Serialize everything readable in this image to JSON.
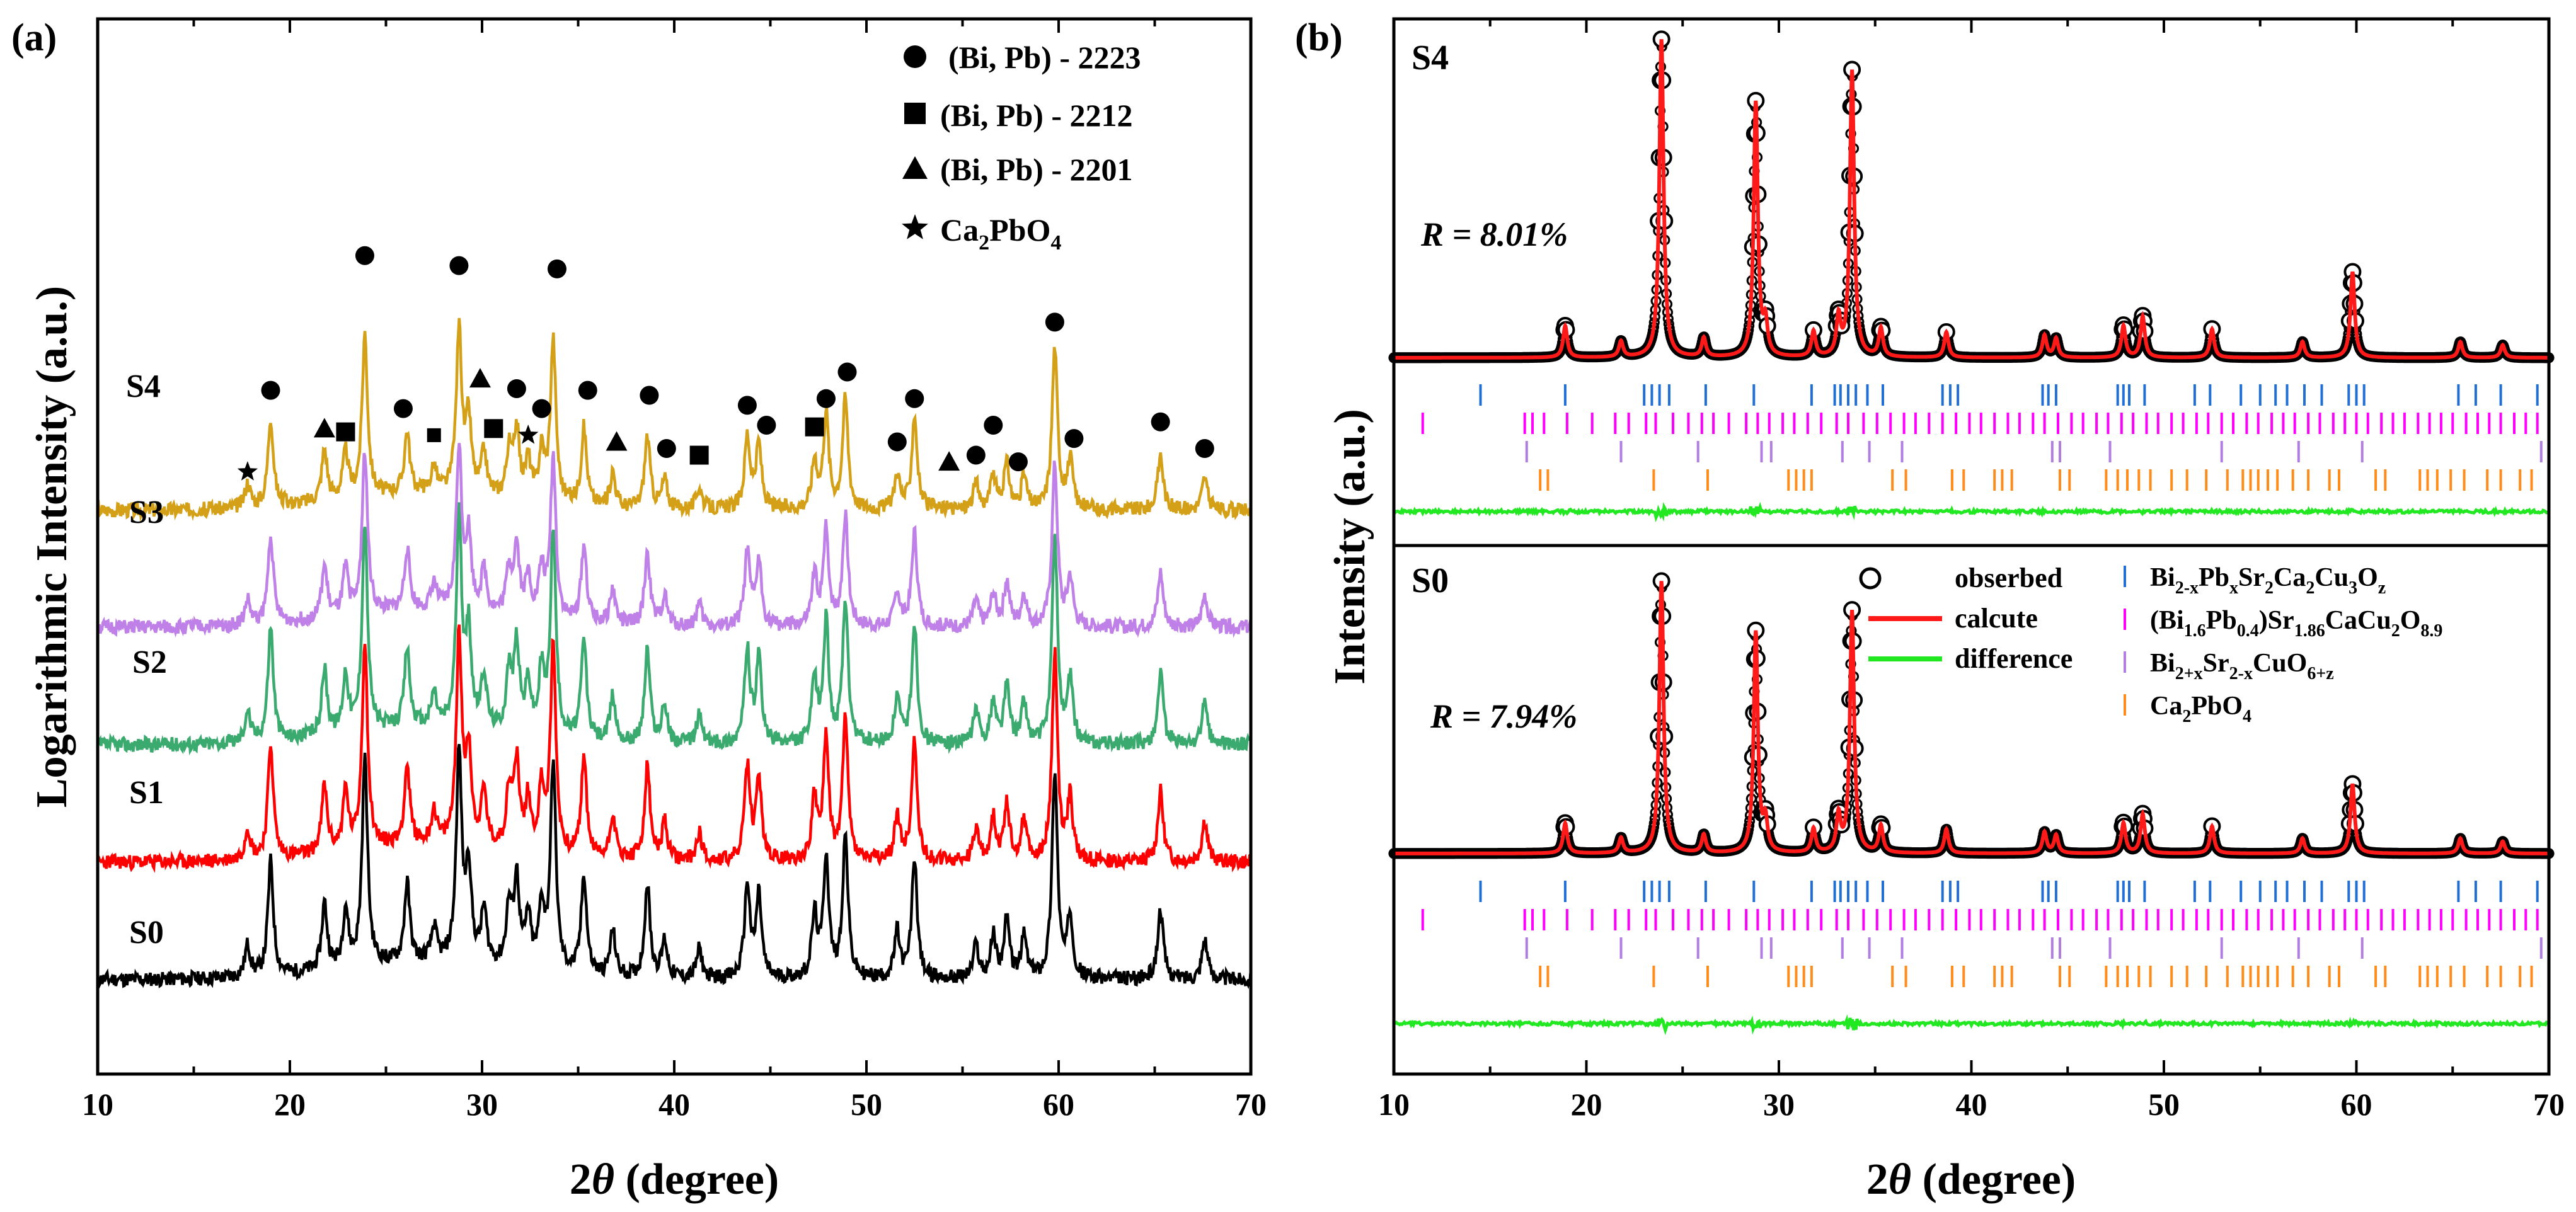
{
  "figure": {
    "panel_a_label": "(a)",
    "panel_b_label": "(b)"
  },
  "chart_data": [
    {
      "panel": "a",
      "type": "line",
      "title": "",
      "xlabel_main": "2",
      "xlabel_theta": "θ",
      "xlabel_rest": " (degree)",
      "ylabel": "Logarithmic Intensity (a.u.)",
      "xlim": [
        10,
        70
      ],
      "xticks": [
        10,
        20,
        30,
        40,
        50,
        60,
        70
      ],
      "grid": false,
      "legend_position": "top-right",
      "peaks": [
        17.8,
        19.0,
        21.8,
        22.9,
        23.9,
        26.1,
        27.5,
        28.8,
        29.3,
        30.1,
        31.4,
        31.8,
        32.4,
        33.1,
        33.7,
        35.3,
        36.8,
        38.6,
        39.5,
        41.3,
        43.8,
        44.4,
        47.3,
        47.9,
        48.9,
        51.6,
        52.5,
        55.7,
        56.6,
        57.3,
        58.2,
        59.8,
        60.6,
        65.3,
        67.6
      ],
      "peak_heights": [
        0.15,
        0.55,
        0.32,
        0.28,
        1.0,
        0.38,
        0.16,
        1.0,
        0.45,
        0.26,
        0.28,
        0.42,
        0.24,
        0.3,
        1.0,
        0.48,
        0.22,
        0.45,
        0.18,
        0.14,
        0.45,
        0.4,
        0.3,
        0.58,
        0.68,
        0.22,
        0.58,
        0.16,
        0.2,
        0.28,
        0.2,
        1.0,
        0.3,
        0.34,
        0.2
      ],
      "series": [
        {
          "name": "S0",
          "color": "#000000",
          "offset": 0,
          "scale": 1.0,
          "seed": 11
        },
        {
          "name": "S1",
          "color": "#ff0000",
          "offset": 0.9,
          "scale": 1.0,
          "seed": 23
        },
        {
          "name": "S2",
          "color": "#3aaa6e",
          "offset": 1.8,
          "scale": 1.0,
          "seed": 37
        },
        {
          "name": "S3",
          "color": "#bf80e8",
          "offset": 2.7,
          "scale": 0.78,
          "seed": 51
        },
        {
          "name": "S4",
          "color": "#d4a017",
          "offset": 3.6,
          "scale": 0.78,
          "seed": 67
        }
      ],
      "phase_legend": [
        {
          "marker": "circle",
          "label": "(Bi, Pb) - 2223"
        },
        {
          "marker": "square",
          "label": "(Bi, Pb) - 2212"
        },
        {
          "marker": "triangle",
          "label": "(Bi, Pb) - 2201"
        },
        {
          "marker": "star",
          "label_main": "Ca",
          "label_sub": "2",
          "label_tail": "PbO",
          "label_sub2": "4"
        }
      ],
      "phase_markers": [
        {
          "x": 17.8,
          "m": "star",
          "lift": 0.06
        },
        {
          "x": 19.0,
          "m": "circle",
          "lift": 0.55
        },
        {
          "x": 21.8,
          "m": "triangle",
          "lift": 0.32
        },
        {
          "x": 22.9,
          "m": "square",
          "lift": 0.3
        },
        {
          "x": 23.9,
          "m": "circle",
          "lift": 1.36
        },
        {
          "x": 25.9,
          "m": "circle",
          "lift": 0.44
        },
        {
          "x": 27.5,
          "m": "square-small",
          "lift": 0.28
        },
        {
          "x": 28.8,
          "m": "circle",
          "lift": 1.3
        },
        {
          "x": 29.9,
          "m": "triangle",
          "lift": 0.62
        },
        {
          "x": 30.6,
          "m": "square",
          "lift": 0.32
        },
        {
          "x": 31.8,
          "m": "circle",
          "lift": 0.56
        },
        {
          "x": 32.4,
          "m": "star",
          "lift": 0.28
        },
        {
          "x": 33.1,
          "m": "circle",
          "lift": 0.44
        },
        {
          "x": 33.9,
          "m": "circle",
          "lift": 1.28
        },
        {
          "x": 35.5,
          "m": "circle",
          "lift": 0.55
        },
        {
          "x": 37.0,
          "m": "triangle",
          "lift": 0.24
        },
        {
          "x": 38.7,
          "m": "circle",
          "lift": 0.52
        },
        {
          "x": 39.6,
          "m": "circle",
          "lift": 0.2
        },
        {
          "x": 41.3,
          "m": "square",
          "lift": 0.16
        },
        {
          "x": 43.8,
          "m": "circle",
          "lift": 0.46
        },
        {
          "x": 44.8,
          "m": "circle",
          "lift": 0.34
        },
        {
          "x": 47.3,
          "m": "square",
          "lift": 0.33
        },
        {
          "x": 47.9,
          "m": "circle",
          "lift": 0.5
        },
        {
          "x": 49.0,
          "m": "circle",
          "lift": 0.66
        },
        {
          "x": 51.6,
          "m": "circle",
          "lift": 0.24
        },
        {
          "x": 52.5,
          "m": "circle",
          "lift": 0.5
        },
        {
          "x": 54.3,
          "m": "triangle",
          "lift": 0.12
        },
        {
          "x": 55.7,
          "m": "circle",
          "lift": 0.16
        },
        {
          "x": 56.6,
          "m": "circle",
          "lift": 0.34
        },
        {
          "x": 57.9,
          "m": "circle",
          "lift": 0.12
        },
        {
          "x": 59.8,
          "m": "circle",
          "lift": 0.96
        },
        {
          "x": 60.8,
          "m": "circle",
          "lift": 0.26
        },
        {
          "x": 65.3,
          "m": "circle",
          "lift": 0.36
        },
        {
          "x": 67.6,
          "m": "circle",
          "lift": 0.2
        }
      ]
    },
    {
      "panel": "b",
      "type": "line",
      "title": "",
      "xlabel_main": "2",
      "xlabel_theta": "θ",
      "xlabel_rest": " (degree)",
      "ylabel": "Intensity (a.u.)",
      "xlim": [
        10,
        70
      ],
      "xticks": [
        10,
        20,
        30,
        40,
        50,
        60,
        70
      ],
      "grid": false,
      "subplots": [
        {
          "name": "S4",
          "r_label": "R = 8.01%",
          "peak_scale": [
            1.0,
            0.8,
            0.9,
            0.27
          ]
        },
        {
          "name": "S0",
          "r_label": "R = 7.94%",
          "peak_scale": [
            0.9,
            0.73,
            0.8,
            0.23
          ]
        }
      ],
      "rietveld_peaks": [
        18.9,
        21.8,
        23.9,
        26.1,
        28.8,
        29.3,
        31.8,
        33.1,
        33.8,
        35.3,
        38.7,
        43.8,
        44.4,
        47.9,
        48.9,
        52.5,
        57.2,
        59.8,
        65.4,
        67.6
      ],
      "rietveld_heights": [
        0.1,
        0.05,
        1.0,
        0.06,
        0.77,
        0.1,
        0.08,
        0.12,
        0.88,
        0.09,
        0.08,
        0.07,
        0.06,
        0.1,
        0.13,
        0.09,
        0.05,
        0.22,
        0.05,
        0.04
      ],
      "legend": [
        {
          "kind": "circle",
          "label": "obserbed"
        },
        {
          "kind": "red-line",
          "label": "calcute"
        },
        {
          "kind": "green-line",
          "label": "difference"
        }
      ],
      "phase_legend": [
        {
          "color": "#1f6fd6",
          "parts": [
            [
              "Bi",
              ""
            ],
            [
              "2-x",
              "sub"
            ],
            [
              "Pb",
              ""
            ],
            [
              "x",
              "sub"
            ],
            [
              "Sr",
              ""
            ],
            [
              "2",
              "sub"
            ],
            [
              "Ca",
              ""
            ],
            [
              "2",
              "sub"
            ],
            [
              "Cu",
              ""
            ],
            [
              "3",
              "sub"
            ],
            [
              "O",
              ""
            ],
            [
              "z",
              "sub"
            ]
          ]
        },
        {
          "color": "#ff00ff",
          "parts": [
            [
              "(Bi",
              ""
            ],
            [
              "1.6",
              "sub"
            ],
            [
              "Pb",
              ""
            ],
            [
              "0.4",
              "sub"
            ],
            [
              ")Sr",
              ""
            ],
            [
              "1.86",
              "sub"
            ],
            [
              "CaCu",
              ""
            ],
            [
              "2",
              "sub"
            ],
            [
              "O",
              ""
            ],
            [
              "8.9",
              "sub"
            ]
          ]
        },
        {
          "color": "#b07ee0",
          "parts": [
            [
              "Bi",
              ""
            ],
            [
              "2+x",
              "sub"
            ],
            [
              "Sr",
              ""
            ],
            [
              "2-x",
              "sub"
            ],
            [
              "CuO",
              ""
            ],
            [
              "6+z",
              "sub"
            ]
          ]
        },
        {
          "color": "#ff8c1a",
          "parts": [
            [
              "Ca",
              ""
            ],
            [
              "2",
              "sub"
            ],
            [
              "PbO",
              ""
            ],
            [
              "4",
              "sub"
            ]
          ]
        }
      ],
      "tick_rows": [
        {
          "color": "#1f6fd6",
          "positions": [
            14.5,
            18.9,
            23.0,
            23.4,
            23.8,
            24.3,
            26.2,
            28.7,
            31.7,
            32.9,
            33.2,
            33.6,
            34.0,
            34.6,
            35.4,
            38.5,
            38.9,
            39.3,
            43.7,
            44.0,
            44.4,
            47.6,
            47.9,
            48.2,
            49.0,
            51.6,
            52.4,
            54.0,
            55.0,
            55.8,
            56.4,
            57.3,
            58.2,
            59.6,
            60.0,
            60.4,
            65.3,
            66.2,
            67.5,
            69.4
          ]
        },
        {
          "color": "#ff00ff",
          "positions": [
            11.5,
            16.8,
            17.2,
            17.8,
            19.0,
            20.3,
            21.5,
            22.2,
            23.1,
            23.6,
            24.5,
            25.3,
            26.0,
            26.6,
            27.4,
            28.3,
            28.9,
            29.5,
            30.2,
            30.8,
            31.5,
            32.2,
            33.0,
            33.6,
            34.4,
            35.1,
            35.8,
            36.5,
            37.1,
            37.8,
            38.5,
            39.2,
            39.9,
            40.5,
            41.2,
            41.9,
            42.5,
            43.2,
            43.8,
            44.5,
            45.2,
            45.8,
            46.5,
            47.1,
            47.8,
            48.4,
            49.1,
            49.7,
            50.4,
            51.0,
            51.7,
            52.3,
            53.0,
            53.6,
            54.3,
            54.9,
            55.6,
            56.2,
            56.8,
            57.5,
            58.1,
            58.8,
            59.4,
            60.0,
            60.6,
            61.3,
            61.9,
            62.5,
            63.2,
            63.8,
            64.4,
            65.0,
            65.7,
            66.3,
            66.9,
            67.5,
            68.2,
            68.8,
            69.4
          ]
        },
        {
          "color": "#b07ee0",
          "positions": [
            16.9,
            21.8,
            25.8,
            29.1,
            29.6,
            33.3,
            34.7,
            36.4,
            44.2,
            44.6,
            47.2,
            53.0,
            57.0,
            60.3,
            69.6
          ]
        },
        {
          "color": "#ff8c1a",
          "positions": [
            17.6,
            18.0,
            23.5,
            26.3,
            30.5,
            30.9,
            31.3,
            31.7,
            35.9,
            36.6,
            39.0,
            39.6,
            41.2,
            41.6,
            42.1,
            44.6,
            45.1,
            47.0,
            47.6,
            48.1,
            48.7,
            49.3,
            50.4,
            51.2,
            52.2,
            53.3,
            54.1,
            54.5,
            54.9,
            55.4,
            55.9,
            56.7,
            57.5,
            58.6,
            59.1,
            61.0,
            61.5,
            63.3,
            63.7,
            64.2,
            64.9,
            65.6,
            66.8,
            67.5,
            68.5,
            69.1
          ]
        }
      ]
    }
  ]
}
